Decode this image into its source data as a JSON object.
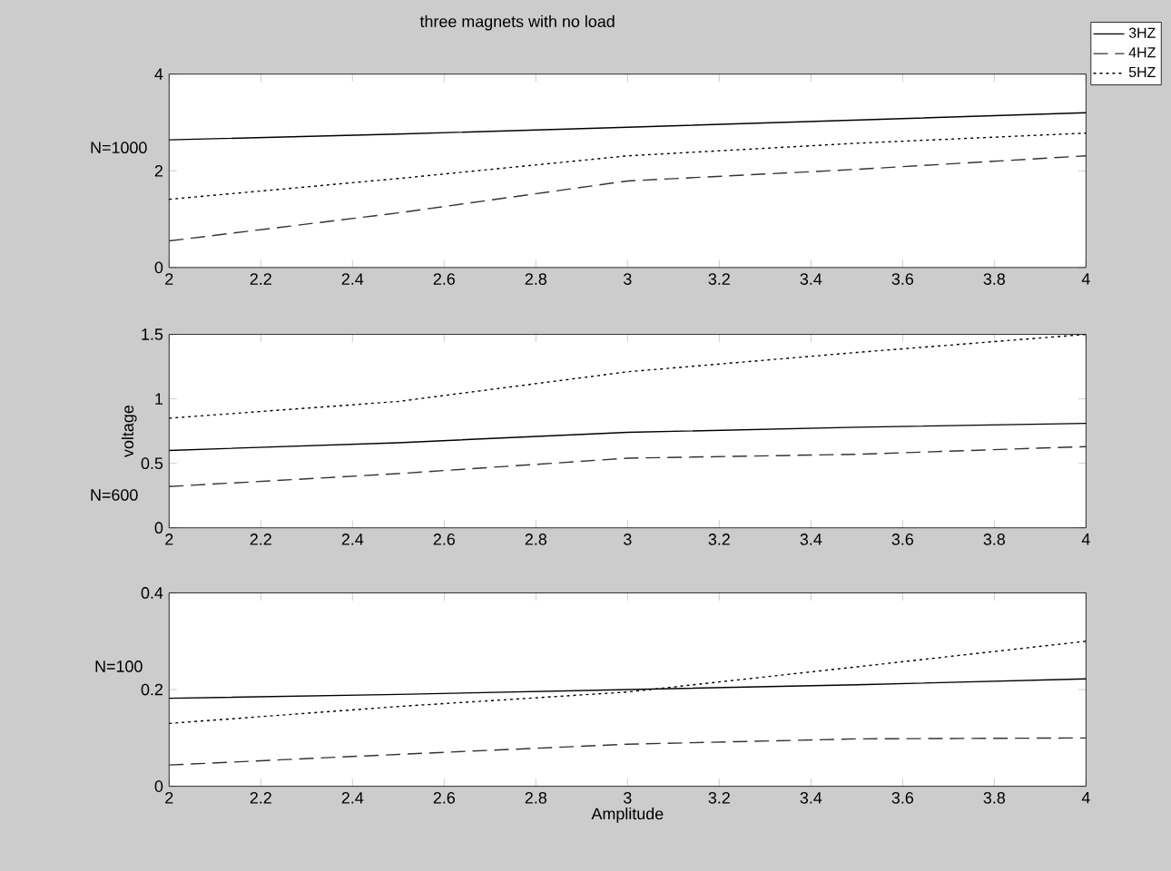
{
  "chart_data": [
    {
      "type": "line",
      "title": "three magnets with no load",
      "ylabel": "N=1000",
      "x": [
        2,
        2.5,
        3,
        3.5,
        4
      ],
      "xlim": [
        2,
        4
      ],
      "xticks": [
        2,
        2.2,
        2.4,
        2.6,
        2.8,
        3,
        3.2,
        3.4,
        3.6,
        3.8,
        4
      ],
      "ylim": [
        0,
        4
      ],
      "yticks": [
        0,
        2,
        4
      ],
      "legend": "top right",
      "grid": false,
      "series": [
        {
          "name": "3HZ",
          "color": "#000000",
          "line_style": "solid",
          "values": [
            2.64,
            2.76,
            2.9,
            3.05,
            3.2
          ]
        },
        {
          "name": "4HZ",
          "color": "#333333",
          "line_style": "dashed",
          "values": [
            0.55,
            1.13,
            1.79,
            2.03,
            2.31
          ]
        },
        {
          "name": "5HZ",
          "color": "#000000",
          "line_style": "dotted",
          "values": [
            1.41,
            1.84,
            2.31,
            2.57,
            2.78
          ]
        }
      ]
    },
    {
      "type": "line",
      "ylabel": "voltage",
      "annotations": [
        "N=600"
      ],
      "x": [
        2,
        2.5,
        3,
        3.5,
        4
      ],
      "xlim": [
        2,
        4
      ],
      "xticks": [
        2,
        2.2,
        2.4,
        2.6,
        2.8,
        3,
        3.2,
        3.4,
        3.6,
        3.8,
        4
      ],
      "ylim": [
        0,
        1.5
      ],
      "yticks": [
        0,
        0.5,
        1,
        1.5
      ],
      "grid": false,
      "series": [
        {
          "color": "#000000",
          "line_style": "solid",
          "values": [
            0.6,
            0.66,
            0.74,
            0.78,
            0.81
          ]
        },
        {
          "color": "#333333",
          "line_style": "dashed",
          "values": [
            0.32,
            0.42,
            0.54,
            0.57,
            0.63
          ]
        },
        {
          "color": "#000000",
          "line_style": "dotted",
          "values": [
            0.85,
            0.98,
            1.21,
            1.36,
            1.5
          ]
        }
      ]
    },
    {
      "type": "line",
      "ylabel": "N=100",
      "xlabel": "Amplitude",
      "x": [
        2,
        2.5,
        3,
        3.5,
        4
      ],
      "xlim": [
        2,
        4
      ],
      "xticks": [
        2,
        2.2,
        2.4,
        2.6,
        2.8,
        3,
        3.2,
        3.4,
        3.6,
        3.8,
        4
      ],
      "ylim": [
        0,
        0.4
      ],
      "yticks": [
        0,
        0.2,
        0.4
      ],
      "grid": false,
      "series": [
        {
          "color": "#000000",
          "line_style": "solid",
          "values": [
            0.182,
            0.19,
            0.2,
            0.21,
            0.222
          ]
        },
        {
          "color": "#333333",
          "line_style": "dashed",
          "values": [
            0.044,
            0.066,
            0.087,
            0.098,
            0.1
          ]
        },
        {
          "color": "#000000",
          "line_style": "dotted",
          "values": [
            0.13,
            0.165,
            0.195,
            0.247,
            0.3
          ]
        }
      ]
    }
  ]
}
